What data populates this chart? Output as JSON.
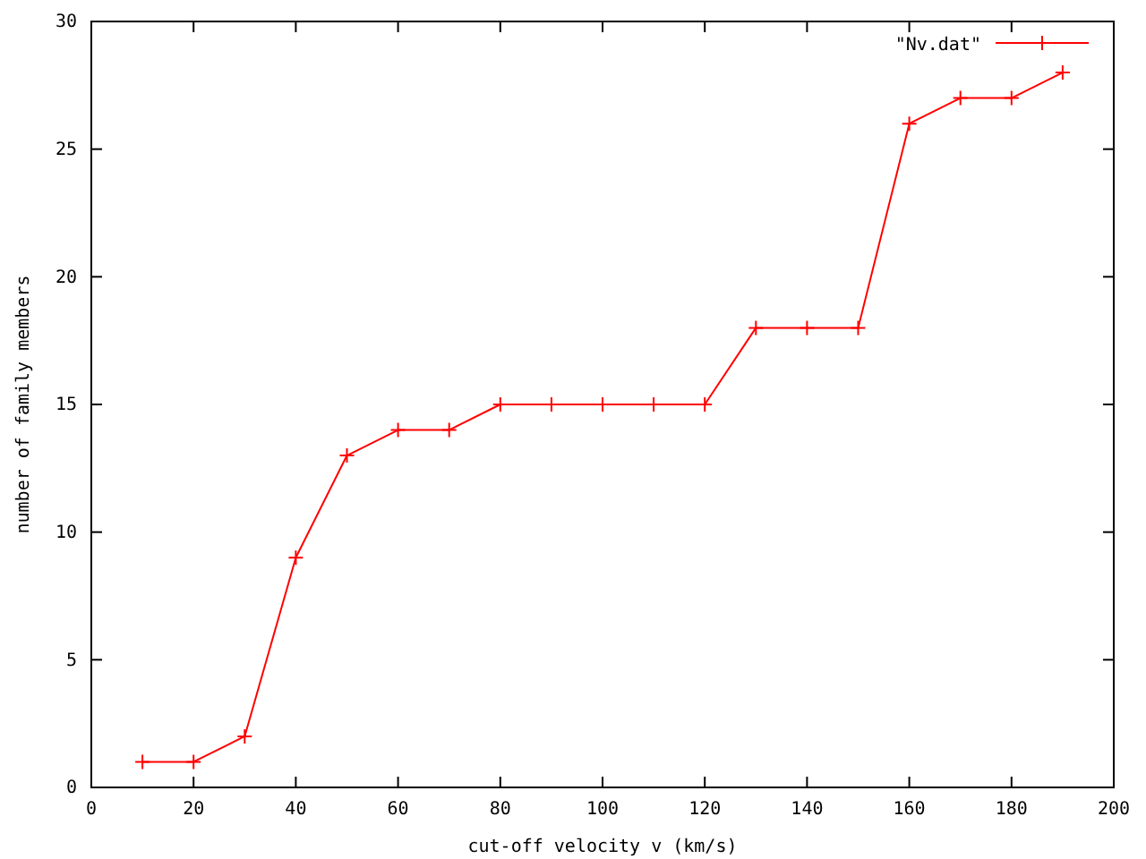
{
  "chart_data": {
    "type": "line",
    "xlabel": "cut-off velocity v (km/s)",
    "ylabel": "number of family members",
    "x": [
      10,
      20,
      30,
      40,
      50,
      60,
      70,
      80,
      90,
      100,
      110,
      120,
      130,
      140,
      150,
      160,
      170,
      180,
      190
    ],
    "series": [
      {
        "name": "\"Nv.dat\"",
        "color": "#ff0000",
        "values": [
          1,
          1,
          2,
          9,
          13,
          14,
          14,
          15,
          15,
          15,
          15,
          15,
          18,
          18,
          18,
          26,
          27,
          27,
          28
        ]
      }
    ],
    "xlim": [
      0,
      200
    ],
    "xticks": [
      0,
      20,
      40,
      60,
      80,
      100,
      120,
      140,
      160,
      180,
      200
    ],
    "ylim": [
      0,
      30
    ],
    "yticks": [
      0,
      5,
      10,
      15,
      20,
      25,
      30
    ],
    "legend": "top right",
    "marker": "cross",
    "line_style": "solid"
  }
}
